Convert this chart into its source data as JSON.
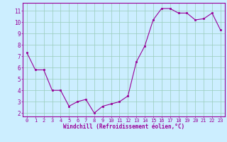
{
  "x": [
    0,
    1,
    2,
    3,
    4,
    5,
    6,
    7,
    8,
    9,
    10,
    11,
    12,
    13,
    14,
    15,
    16,
    17,
    18,
    19,
    20,
    21,
    22,
    23
  ],
  "y": [
    7.3,
    5.8,
    5.8,
    4.0,
    4.0,
    2.6,
    3.0,
    3.2,
    2.0,
    2.6,
    2.8,
    3.0,
    3.5,
    6.5,
    7.9,
    10.2,
    11.2,
    11.2,
    10.8,
    10.8,
    10.2,
    10.3,
    10.8,
    9.3
  ],
  "xlabel": "Windchill (Refroidissement éolien,°C)",
  "xlim_min": -0.5,
  "xlim_max": 23.5,
  "ylim_min": 1.7,
  "ylim_max": 11.7,
  "yticks": [
    2,
    3,
    4,
    5,
    6,
    7,
    8,
    9,
    10,
    11
  ],
  "xticks": [
    0,
    1,
    2,
    3,
    4,
    5,
    6,
    7,
    8,
    9,
    10,
    11,
    12,
    13,
    14,
    15,
    16,
    17,
    18,
    19,
    20,
    21,
    22,
    23
  ],
  "line_color": "#990099",
  "marker_color": "#990099",
  "bg_color": "#cceeff",
  "grid_color": "#99ccbb",
  "tick_label_color": "#990099",
  "xlabel_color": "#990099",
  "border_color": "#990099",
  "tick_fontsize": 5.0,
  "xlabel_fontsize": 5.5
}
